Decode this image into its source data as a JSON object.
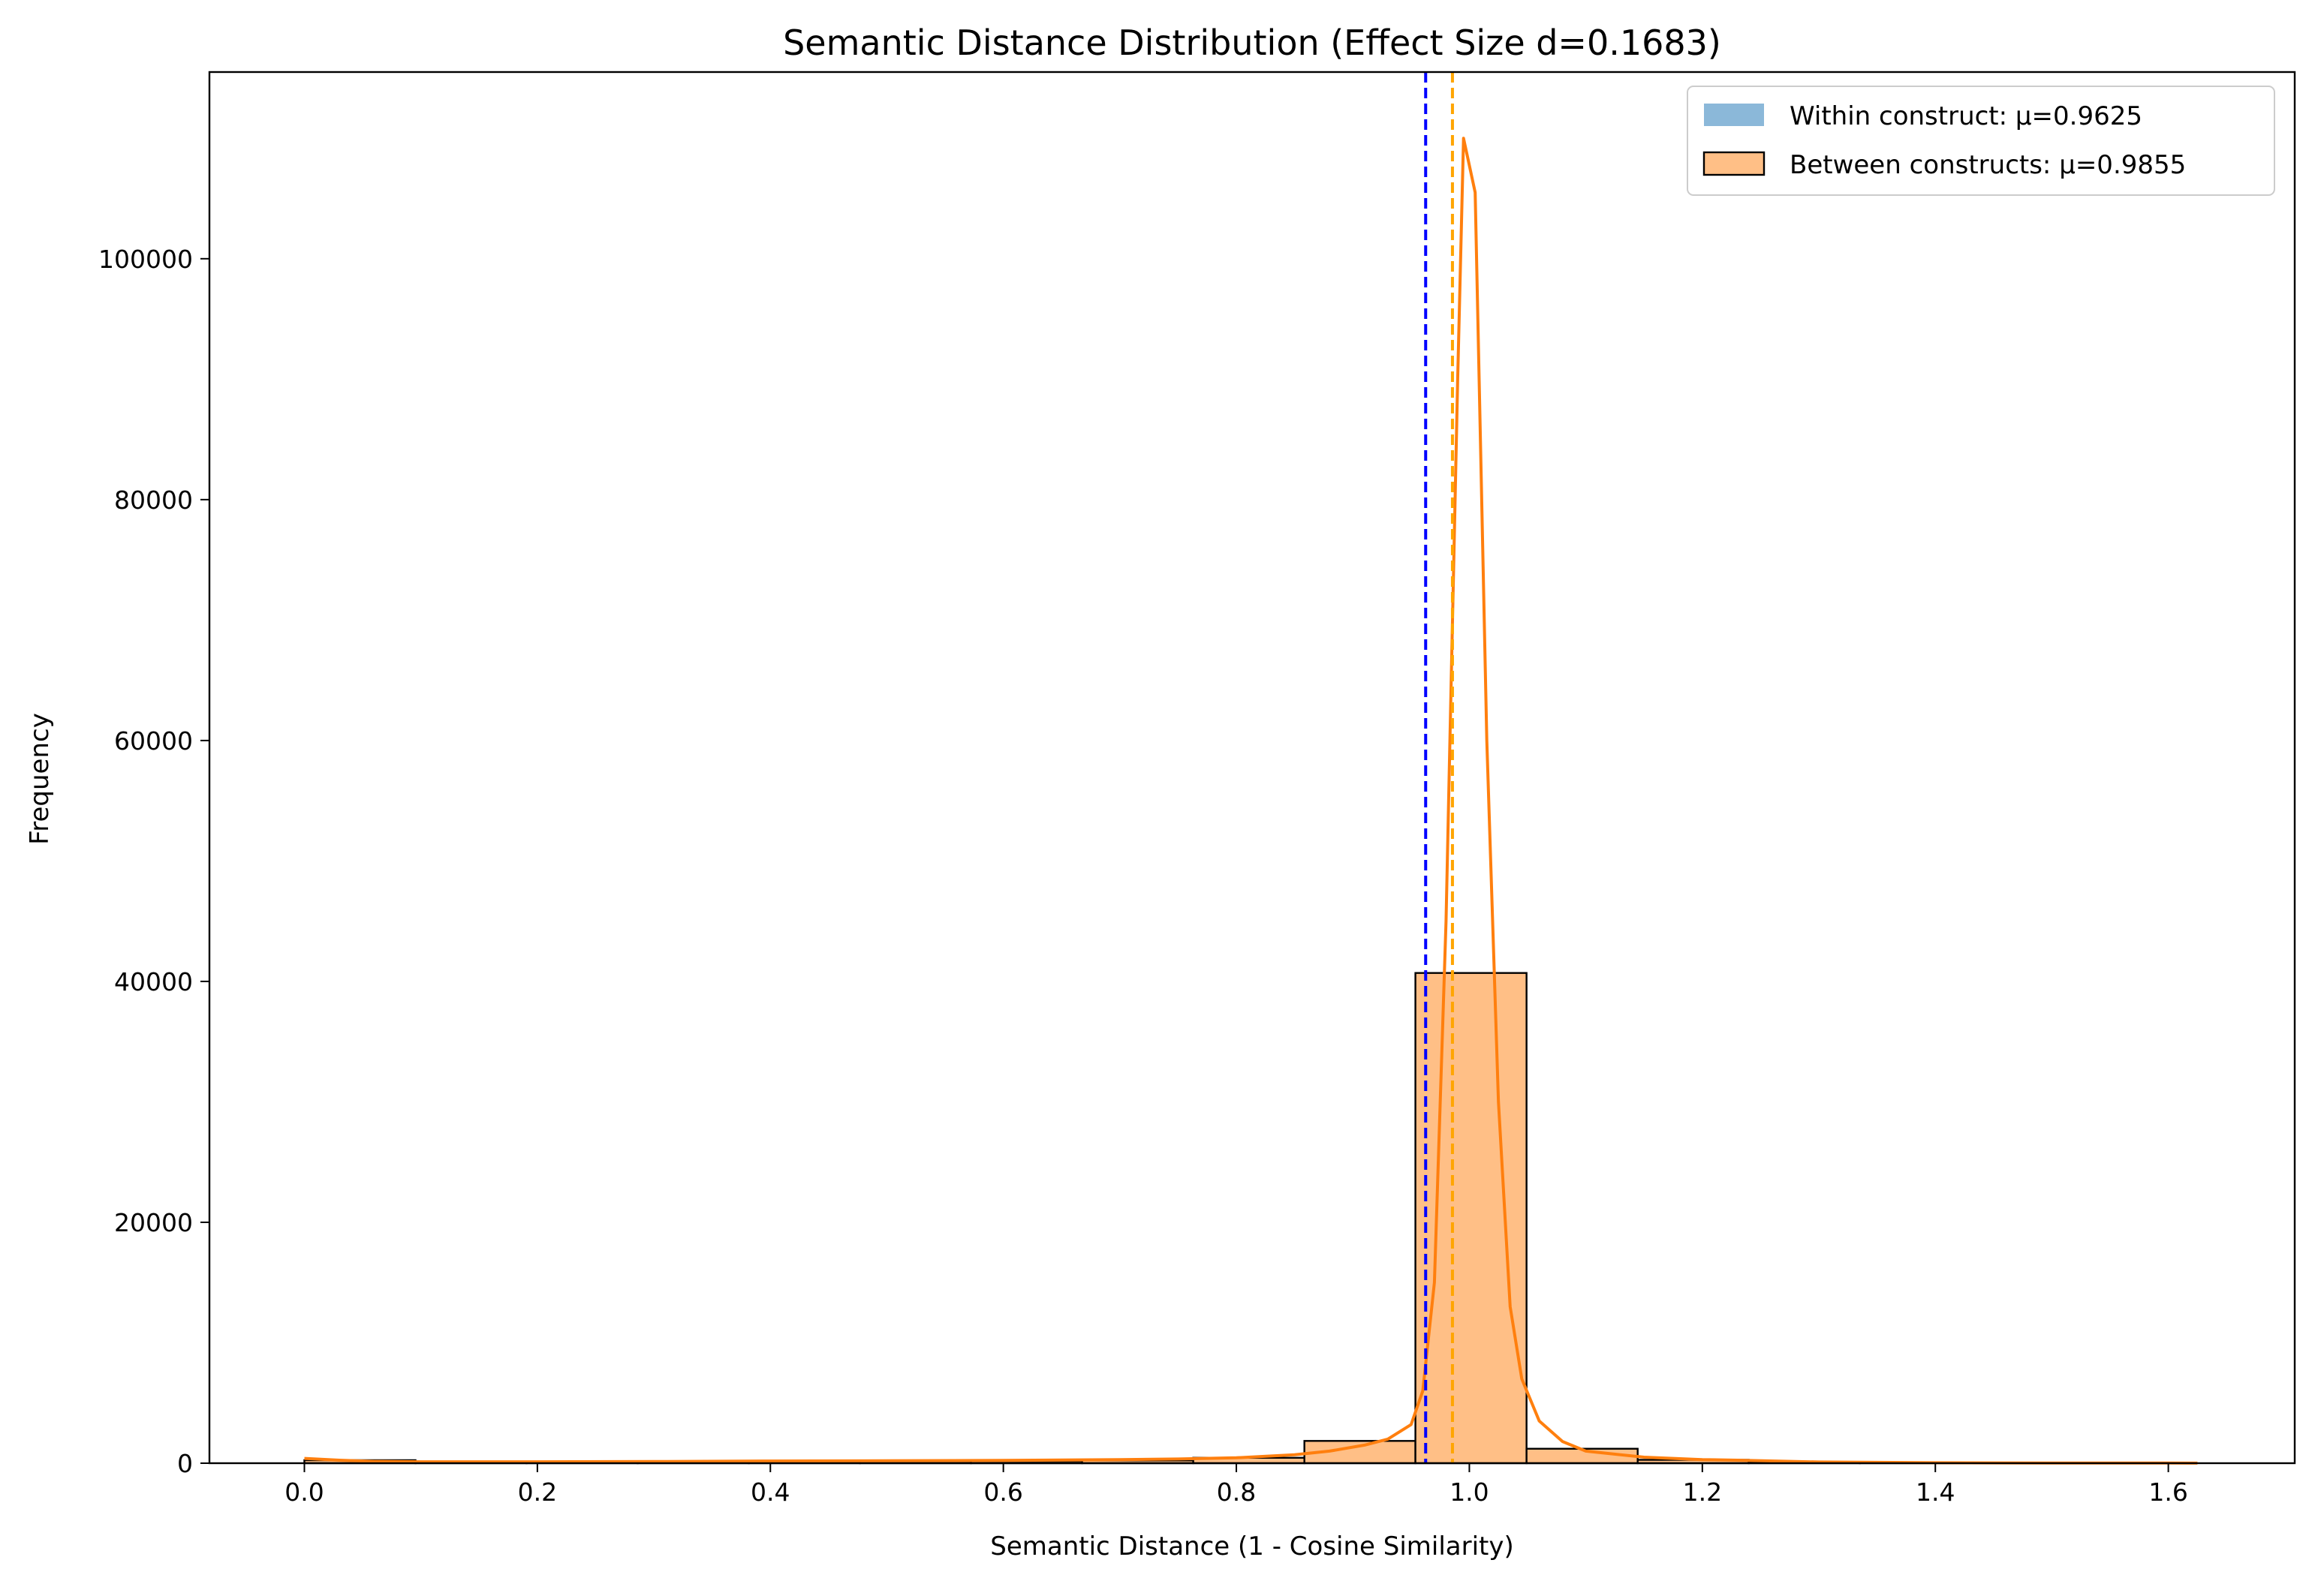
{
  "chart_data": {
    "type": "bar",
    "title": "Semantic Distance Distribution (Effect Size d=0.1683)",
    "xlabel": "Semantic Distance (1 - Cosine Similarity)",
    "ylabel": "Frequency",
    "xlim": [
      -0.0815,
      1.7085
    ],
    "ylim": [
      0,
      115500
    ],
    "x_ticks": [
      0.0,
      0.2,
      0.4,
      0.6,
      0.8,
      1.0,
      1.2,
      1.4,
      1.6
    ],
    "x_tick_labels": [
      "0.0",
      "0.2",
      "0.4",
      "0.6",
      "0.8",
      "1.0",
      "1.2",
      "1.4",
      "1.6"
    ],
    "y_ticks": [
      0,
      20000,
      40000,
      60000,
      80000,
      100000
    ],
    "y_tick_labels": [
      "0",
      "20000",
      "40000",
      "60000",
      "80000",
      "100000"
    ],
    "grid": false,
    "legend_position": "top-right",
    "legend": [
      {
        "label": "Within construct: μ=0.9625",
        "color": "#8bb8d9",
        "edge": "none"
      },
      {
        "label": "Between constructs: μ=0.9855",
        "color": "#ffbf86",
        "edge": "#000000"
      }
    ],
    "series": [
      {
        "name": "Between constructs: μ=0.9855",
        "kind": "histogram",
        "fill": "#ffbf86",
        "edge": "#000000",
        "bins": [
          {
            "x0": 0.0,
            "x1": 0.0954,
            "count": 250
          },
          {
            "x0": 0.0954,
            "x1": 0.1907,
            "count": 130
          },
          {
            "x0": 0.1907,
            "x1": 0.2861,
            "count": 110
          },
          {
            "x0": 0.2861,
            "x1": 0.3815,
            "count": 120
          },
          {
            "x0": 0.3815,
            "x1": 0.4769,
            "count": 140
          },
          {
            "x0": 0.4769,
            "x1": 0.5722,
            "count": 160
          },
          {
            "x0": 0.5722,
            "x1": 0.6676,
            "count": 170
          },
          {
            "x0": 0.6676,
            "x1": 0.763,
            "count": 230
          },
          {
            "x0": 0.763,
            "x1": 0.8584,
            "count": 450
          },
          {
            "x0": 0.8584,
            "x1": 0.9537,
            "count": 1850
          },
          {
            "x0": 0.9537,
            "x1": 1.0491,
            "count": 40700
          },
          {
            "x0": 1.0491,
            "x1": 1.1445,
            "count": 1200
          },
          {
            "x0": 1.1445,
            "x1": 1.2398,
            "count": 280
          },
          {
            "x0": 1.2398,
            "x1": 1.3352,
            "count": 60
          },
          {
            "x0": 1.3352,
            "x1": 1.4306,
            "count": 20
          },
          {
            "x0": 1.4306,
            "x1": 1.526,
            "count": 10
          },
          {
            "x0": 1.526,
            "x1": 1.6213,
            "count": 5
          }
        ]
      },
      {
        "name": "Between constructs KDE",
        "kind": "line",
        "color": "#ff7f0e",
        "points": [
          [
            0.0,
            400
          ],
          [
            0.03,
            250
          ],
          [
            0.06,
            150
          ],
          [
            0.1,
            120
          ],
          [
            0.2,
            120
          ],
          [
            0.3,
            140
          ],
          [
            0.4,
            180
          ],
          [
            0.5,
            200
          ],
          [
            0.6,
            230
          ],
          [
            0.7,
            300
          ],
          [
            0.75,
            350
          ],
          [
            0.8,
            450
          ],
          [
            0.85,
            700
          ],
          [
            0.88,
            1000
          ],
          [
            0.91,
            1500
          ],
          [
            0.93,
            2000
          ],
          [
            0.95,
            3200
          ],
          [
            0.96,
            6000
          ],
          [
            0.97,
            15000
          ],
          [
            0.98,
            45000
          ],
          [
            0.99,
            90000
          ],
          [
            0.995,
            110000
          ],
          [
            1.005,
            105500
          ],
          [
            1.015,
            60000
          ],
          [
            1.025,
            30000
          ],
          [
            1.035,
            13000
          ],
          [
            1.045,
            7000
          ],
          [
            1.06,
            3500
          ],
          [
            1.08,
            1800
          ],
          [
            1.1,
            1000
          ],
          [
            1.15,
            500
          ],
          [
            1.2,
            300
          ],
          [
            1.23,
            250
          ],
          [
            1.3,
            100
          ],
          [
            1.4,
            40
          ],
          [
            1.5,
            20
          ],
          [
            1.6,
            10
          ],
          [
            1.625,
            5
          ]
        ]
      }
    ],
    "reference_lines": [
      {
        "x": 0.9625,
        "color": "#0000ff",
        "style": "dashed"
      },
      {
        "x": 0.9855,
        "color": "#ffa500",
        "style": "dashed"
      }
    ]
  }
}
